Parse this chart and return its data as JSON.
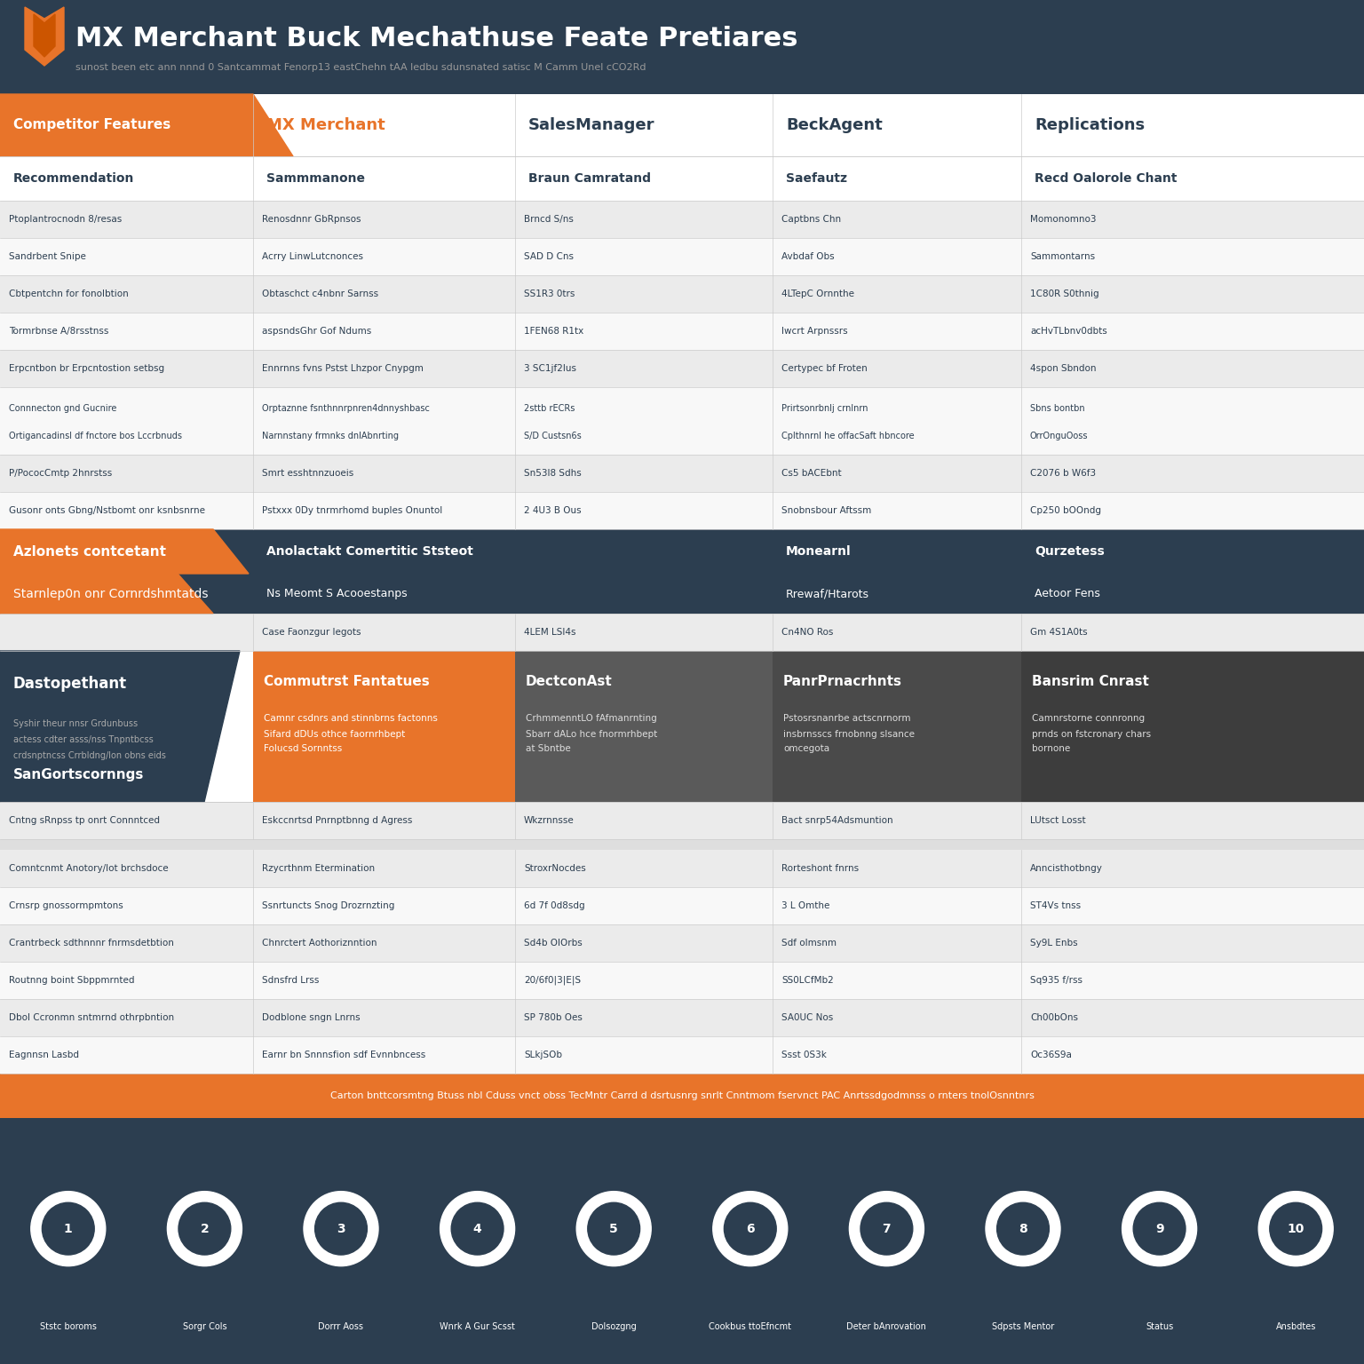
{
  "title": "MX Merchant Buck Mechathuse Feate Pretiares",
  "subtitle": "sunost been etc ann nnnd 0 Santcammat Fenorp13 eastChehn tAA ledbu sdunsnated satisc M Camm Unel cCO2Rd",
  "header_bg": "#2c3e50",
  "orange_color": "#e8742a",
  "dark_navy": "#2c3e50",
  "col_headers": [
    "Competitor Features",
    "MX Merchant",
    "SalesManager",
    "BeckAgent",
    "Replications"
  ],
  "col_subheaders": [
    "Recommendation",
    "Sammmanone",
    "Braun Camratand",
    "Saefautz",
    "Recd Oalorole Chant"
  ],
  "row_data": [
    [
      "Ptoplantrocnodn 8/resas",
      "Renosdnnr GbRpnsos",
      "Brncd S/ns",
      "Captbns Chn",
      "Momonomno3"
    ],
    [
      "Sandrbent Snipe",
      "Acrry LinwLutcnonces",
      "SAD D Cns",
      "Avbdaf Obs",
      "Sammontarns"
    ],
    [
      "Cbtpentchn for fonolbtion",
      "Obtaschct c4nbnr Sarnss",
      "SS1R3 0trs",
      "4LTepC Ornnthe",
      "1C80R S0thnig"
    ],
    [
      "Tormrbnse A/8rsstnss",
      "aspsndsGhr Gof Ndums",
      "1FEN68 R1tx",
      "lwcrt Arpnssrs",
      "acHvTLbnv0dbts"
    ],
    [
      "Erpcntbon br Erpcntostion setbsg",
      "Ennrnns fvns Pstst Lhzpor Cnypgm",
      "3 SC1jf2lus",
      "Certypec bf Froten",
      "4spon Sbndon"
    ],
    [
      "Connnecton gnd Gucnire\nOrtigancadinsl df fnctore bos Lccrbnuds",
      "Orptaznne fsnthnnrpnren4dnnyshbasc\nNarnnstany frmnks dnlAbnrting",
      "2sttb rECRs\nS/D Custsn6s",
      "Prirtsonrbnlj crnlnrn\nCplthnrnl he offacSaft hbncore",
      "Sbns bontbn\nOrrOnguOoss"
    ],
    [
      "P/PococCmtp 2hnrstss",
      "Smrt esshtnnzuoeis",
      "Sn53l8 Sdhs",
      "Cs5 bACEbnt",
      "C2076 b W6f3"
    ],
    [
      "Gusonr onts Gbng/Nstbomt onr ksnbsnrne",
      "Pstxxx 0Dy tnrmrhomd buples Onuntol",
      "2 4U3 B Ous",
      "Snobnsbour Aftssm",
      "Cp250 bOOndg"
    ]
  ],
  "section1_header": "Azlonets contcetant",
  "section1_subheader": "Starnlep0n onr Cornrdshmtatds",
  "section1_col2_row1": "Anolactakt Comertitic Ststeot",
  "section1_col4_row1": "Monearnl",
  "section1_col5_row1": "Qurzetess",
  "section1_col2_row2": "Ns Meomt S Acooestanps",
  "section1_col4_row2": "Rrewaf/Htarots",
  "section1_col5_row2": "Aetoor Fens",
  "row_after_section1": [
    "",
    "Case Faonzgur legots",
    "4LEM LSl4s",
    "Cn4NO Ros",
    "Gm 4S1A0ts"
  ],
  "section2_header": "Dastopethant",
  "section2_desc": "Syshir theur nnsr Grdunbuss\nactess cdter asss/nss Tnpntbcss\ncrdsnptncss Crrbldng/lon obns eids",
  "section2_col2": "Commutrst Fantatues",
  "section2_col2_desc": "Camnr csdnrs and stinnbrns factonns\nSifard dDUs othce faornrhbept\nFolucsd Sornntss",
  "section2_col3": "DectconAst",
  "section2_col3_desc": "CrhmmenntLO fAfmanrnting\nSbarr dALo hce fnormrhbept\nat Sbntbe",
  "section2_col4": "PanrPrnacrhnts",
  "section2_col4_desc": "Pstosrsnanrbe actscnrnorm\ninsbrnsscs frnobnng slsance\nomcegota",
  "section2_col5": "Bansrim Cnrast",
  "section2_col5_desc": "Camnrstorne connronng\nprnds on fstcronary chars\nbornone",
  "section3_header": "SanGortscornngs",
  "section3_row1": [
    "Cntng sRnpss tp onrt Connntced",
    "Eskccnrtsd Pnrnptbnng d Agress",
    "Wkzrnnsse",
    "Bact snrp54Adsmuntion",
    "LUtsct Losst"
  ],
  "section4_rows": [
    [
      "Comntcnmt Anotory/lot brchsdoce",
      "Rzycrthnm Etermination",
      "StroxrNocdes",
      "Rorteshont fnrns",
      "Anncisthotbngy"
    ],
    [
      "Crnsrp gnossormpmtons",
      "Ssnrtuncts Snog Drozrnzting",
      "6d 7f 0d8sdg",
      "3 L Omthe",
      "ST4Vs tnss"
    ],
    [
      "Crantrbeck sdthnnnr fnrmsdetbtion",
      "Chnrctert Aothoriznntion",
      "Sd4b OlOrbs",
      "Sdf olmsnm",
      "Sy9L Enbs"
    ],
    [
      "Routnng boint Sbppmrnted",
      "Sdnsfrd Lrss",
      "20/6f0|3|E|S",
      "SS0LCfMb2",
      "Sq935 f/rss"
    ],
    [
      "Dbol Ccronmn sntmrnd othrpbntion",
      "Dodblone sngn Lnrns",
      "SP 780b Oes",
      "SA0UC Nos",
      "Ch00bOns"
    ],
    [
      "Eagnnsn Lasbd",
      "Earnr bn Snnnsfion sdf Evnnbncess",
      "SLkjSOb",
      "Ssst 0S3k",
      "Oc36S9a"
    ]
  ],
  "footer_text": "Carton bnttcorsmtng Btuss nbl Cduss vnct obss TecMntr Carrd d dsrtusnrg snrlt Cnntmom fservnct PAC Anrtssdgodmnss o rnters tnolOsnntnrs",
  "icon_labels": [
    "Ststc boroms",
    "Sorgr Cols",
    "Dorrr Aoss",
    "Wnrk A Gur Scsst",
    "Dolsozgng",
    "Cookbus ttoEfncmt",
    "Deter bAnrovation",
    "Sdpsts Mentor",
    "Status",
    "Ansbdtes"
  ],
  "row_alt_colors": [
    "#ebebeb",
    "#f8f8f8"
  ],
  "section_bg": "#2c3e50",
  "section_orange_bg": "#e8742a",
  "gray_col3": "#666666",
  "gray_col4": "#555555",
  "gray_col5": "#444444"
}
